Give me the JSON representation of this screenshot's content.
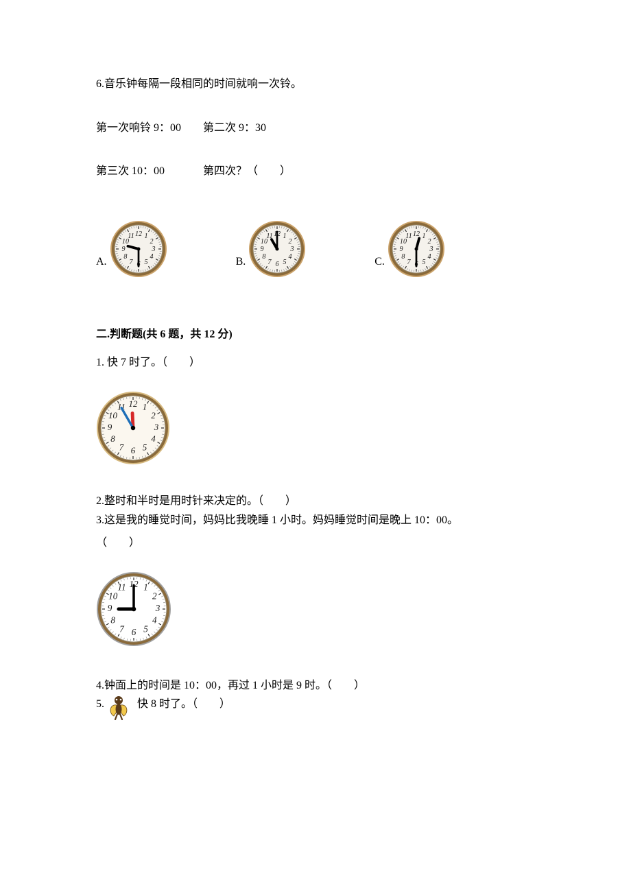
{
  "q6": {
    "line1": "6.音乐钟每隔一段相同的时间就响一次铃。",
    "line2_a": "第一次响铃 9：00",
    "line2_b": "第二次 9：30",
    "line3_a": "第三次 10：00",
    "line3_b": "第四次？（　　）",
    "options": {
      "a_label": "A.",
      "a_clock": {
        "hour": 9,
        "minute": 30,
        "size": 84,
        "border": "#caa26a",
        "face": "#f5f2ec"
      },
      "b_label": "B.",
      "b_clock": {
        "hour": 11,
        "minute": 0,
        "size": 84,
        "border": "#caa26a",
        "face": "#f5f2ec"
      },
      "c_label": "C.",
      "c_clock": {
        "hour": 12,
        "minute": 30,
        "size": 84,
        "border": "#caa26a",
        "face": "#f5f2ec"
      }
    }
  },
  "section2": {
    "header": "二.判断题(共 6 题，共 12 分)",
    "q1": {
      "text": "1. 快 7 时了。（　　）",
      "clock": {
        "hour": 11,
        "minute": 55,
        "size": 108,
        "border": "#d6b97f",
        "face": "#fbf7ef",
        "hourColor": "#d62828",
        "minuteColor": "#1e6fb8"
      }
    },
    "q2": {
      "text": "2.整时和半时是用时针来决定的。（　　）"
    },
    "q3": {
      "text_a": "3.这是我的睡觉时间，妈妈比我晚睡 1 小时。妈妈睡觉时间是晚上 10：00。",
      "text_b": "（　　）",
      "clock": {
        "hour": 9,
        "minute": 0,
        "size": 110,
        "border": "#a0a0a0",
        "face": "#ffffff"
      }
    },
    "q4": {
      "text": "4.钟面上的时间是 10：00，再过 1 小时是 9 时。（　　）"
    },
    "q5": {
      "num": "5.",
      "rest": "快 8 时了。（　　）",
      "icon": {
        "bodyColor": "#5a3b1a",
        "wingColor": "#f2c84b"
      }
    }
  }
}
